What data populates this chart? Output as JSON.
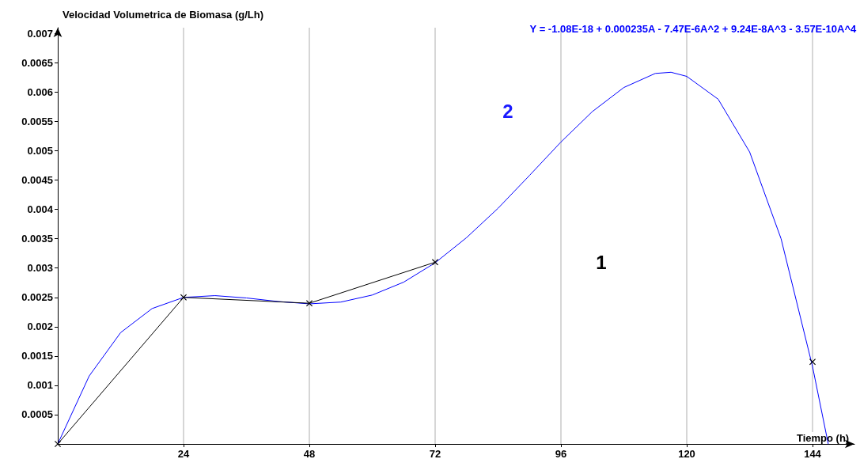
{
  "chart_data": {
    "type": "line",
    "xlabel": "Tiempo (h)",
    "ylabel": "Velocidad Volumetrica de Biomasa (g/Lh)",
    "annotations": [
      "Y = -1.08E-18 + 0.000235A - 7.47E-6A^2 + 9.24E-8A^3 - 3.57E-10A^4",
      "1",
      "2"
    ],
    "xlim": [
      0,
      152
    ],
    "xticks": [
      24,
      48,
      72,
      96,
      120,
      144
    ],
    "ylim": [
      0,
      0.0071
    ],
    "yticks": [
      0.0005,
      0.001,
      0.0015,
      0.002,
      0.0025,
      0.003,
      0.0035,
      0.004,
      0.0045,
      0.005,
      0.0055,
      0.006,
      0.0065,
      0.007
    ],
    "grid": "x",
    "line_style": "solid",
    "series": [
      {
        "color": "#0000ff",
        "marker": "none",
        "x": [
          0,
          6,
          12,
          18,
          24,
          30,
          36,
          42,
          48,
          54,
          60,
          66,
          72,
          78,
          84,
          90,
          96,
          102,
          108,
          114,
          117,
          120,
          126,
          132,
          138,
          144,
          147
        ],
        "values": [
          0,
          0.00116,
          0.0019,
          0.00231,
          0.0025,
          0.00253,
          0.00249,
          0.00243,
          0.00239,
          0.00242,
          0.00254,
          0.00276,
          0.00309,
          0.00352,
          0.00402,
          0.00458,
          0.00515,
          0.00567,
          0.00608,
          0.00632,
          0.00634,
          0.00627,
          0.00588,
          0.00498,
          0.0035,
          0.00132,
          0
        ]
      },
      {
        "color": "#000000",
        "marker": "cross",
        "x": [
          0,
          24,
          48,
          72,
          108,
          144
        ],
        "values": [
          0,
          0.0025,
          0.0024,
          0.0031,
          null,
          0.0014
        ]
      }
    ]
  }
}
